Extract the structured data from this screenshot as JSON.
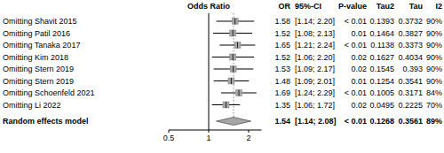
{
  "chart_data": {
    "type": "forest",
    "x_label": "Odds Ratio",
    "column_headers": [
      "OR",
      "95%-CI",
      "P-value",
      "Tau2",
      "Tau",
      "I2"
    ],
    "categories": [
      "Omitting Shavit 2015",
      "Omitting Patil 2016",
      "Omitting Tanaka 2017",
      "Omitting Kim 2018",
      "Omitting Stern 2019",
      "Omitting Stern 2019",
      "Omitting Schoenfeld 2021",
      "Omitting Li 2022"
    ],
    "values": [
      1.58,
      1.52,
      1.65,
      1.52,
      1.53,
      1.48,
      1.69,
      1.35
    ],
    "ci_lower": [
      1.14,
      1.08,
      1.21,
      1.06,
      1.09,
      1.09,
      1.24,
      1.06
    ],
    "ci_upper": [
      2.2,
      2.13,
      2.24,
      2.2,
      2.17,
      2.01,
      2.29,
      1.72
    ],
    "ci_labels": [
      "[1.14; 2.20]",
      "[1.08; 2.13]",
      "[1.21; 2.24]",
      "[1.06; 2.20]",
      "[1.09; 2.17]",
      "[1.09; 2.01]",
      "[1.24; 2.29]",
      "[1.06; 1.72]"
    ],
    "p_values": [
      "< 0.01",
      "0.01",
      "< 0.01",
      "0.02",
      "0.02",
      "0.01",
      "< 0.01",
      "0.02"
    ],
    "tau2": [
      0.1393,
      0.1464,
      0.1138,
      0.1627,
      0.1545,
      0.1254,
      0.1005,
      0.0495
    ],
    "tau": [
      0.3732,
      0.3827,
      0.3373,
      0.4034,
      0.393,
      0.3541,
      0.3171,
      0.2225
    ],
    "i2": [
      90,
      90,
      90,
      90,
      90,
      90,
      84,
      70
    ],
    "i2_labels": [
      "90%",
      "90%",
      "90%",
      "90%",
      "90%",
      "90%",
      "84%",
      "70%"
    ],
    "summary": {
      "label": "Random effects model",
      "value": 1.54,
      "ci_lower": 1.14,
      "ci_upper": 2.08,
      "ci_label": "[1.14; 2.08]",
      "p_value": "< 0.01",
      "tau2": 0.1268,
      "tau": 0.3561,
      "i2": 89,
      "i2_label": "89%"
    },
    "reference_line": 1,
    "xlim": [
      0.5,
      2.5
    ],
    "xticks": [
      0.5,
      1,
      2
    ],
    "log": "x",
    "color": "#a6a6a6"
  }
}
